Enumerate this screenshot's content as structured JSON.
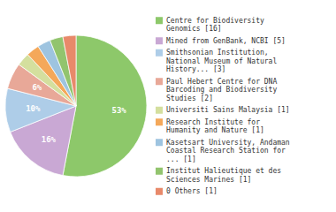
{
  "chart_data": {
    "type": "pie",
    "categories": [
      "Centre for Biodiversity\nGenomics [16]",
      "Mined from GenBank, NCBI [5]",
      "Smithsonian Institution,\nNational Museum of Natural\nHistory... [3]",
      "Paul Hebert Centre for DNA\nBarcoding and Biodiversity\nStudies [2]",
      "Universiti Sains Malaysia [1]",
      "Research Institute for\nHumanity and Nature [1]",
      "Kasetsart University, Andaman\nCoastal Research Station for\n... [1]",
      "Institut Halieutique et des\nSciences Marines [1]",
      "0 Others [1]"
    ],
    "values": [
      53,
      16,
      10,
      6,
      3,
      3,
      3,
      3,
      3
    ],
    "value_labels": [
      "53%",
      "16%",
      "10%",
      "6%",
      null,
      null,
      null,
      null,
      null
    ],
    "data_labels": true,
    "colors": [
      "#8dc86a",
      "#c9a8d4",
      "#aecde8",
      "#e8a898",
      "#d4df9e",
      "#f4a85a",
      "#9ec4e0",
      "#92c46e",
      "#e8896a"
    ],
    "legend": "right"
  }
}
